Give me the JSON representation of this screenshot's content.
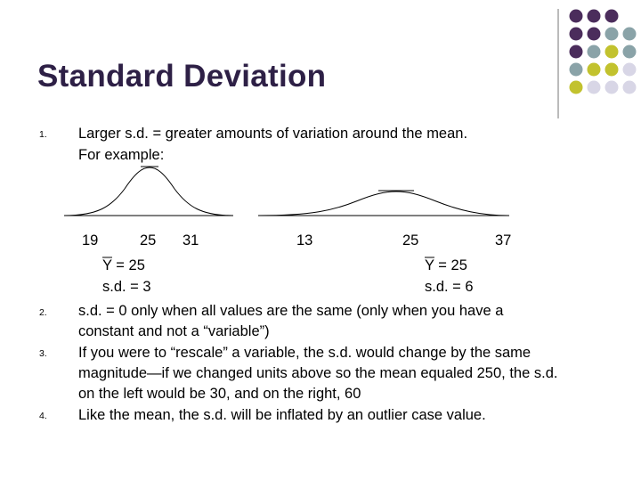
{
  "header": {
    "title": "Standard Deviation"
  },
  "items": [
    {
      "number": "1.",
      "lines": [
        "Larger s.d. = greater amounts of variation around the mean.",
        "For example:"
      ]
    },
    {
      "number": "2.",
      "lines": [
        "s.d. = 0 only when all values are the same (only when you have a",
        "constant and not a “variable”)"
      ]
    },
    {
      "number": "3.",
      "lines": [
        "If you were to “rescale” a variable, the s.d. would change by the same",
        "magnitude—if we changed units above so the mean equaled 250, the s.d.",
        "on the left would be 30, and on the right, 60"
      ]
    },
    {
      "number": "4.",
      "lines": [
        "Like the mean, the s.d. will be inflated by an outlier case value."
      ]
    }
  ],
  "example": {
    "left": {
      "axis_labels": [
        "19",
        "25",
        "31"
      ],
      "mean": "Y = 25",
      "sd": "s.d. = 3"
    },
    "right": {
      "axis_labels": [
        "13",
        "25",
        "37"
      ],
      "mean": "Y = 25",
      "sd": "s.d. = 6"
    }
  }
}
